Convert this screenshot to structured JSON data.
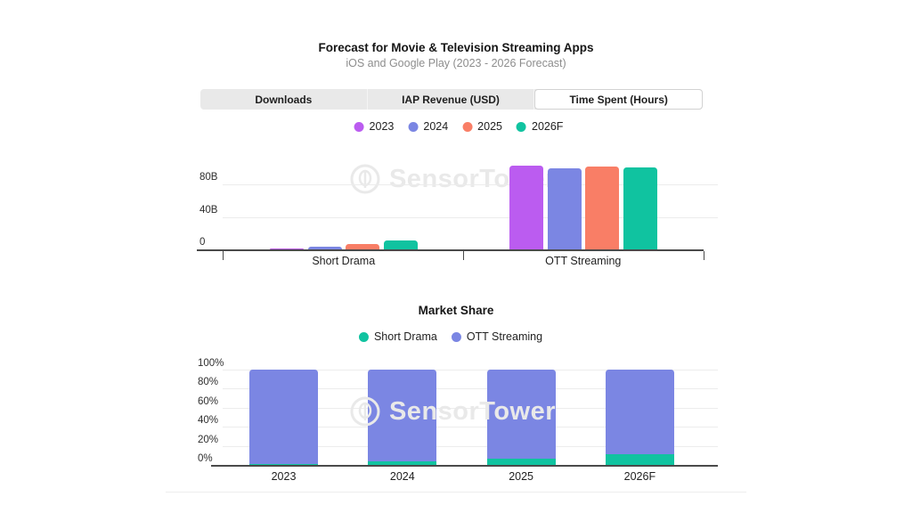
{
  "watermark": {
    "text": "SensorTower"
  },
  "tabs": [
    {
      "label": "Downloads",
      "selected": false
    },
    {
      "label": "IAP Revenue (USD)",
      "selected": false
    },
    {
      "label": "Time Spent (Hours)",
      "selected": true
    }
  ],
  "colors": {
    "year_2023": "#bb5cf0",
    "year_2024": "#7b86e3",
    "year_2025": "#f97e66",
    "year_2026f": "#10c3a0",
    "short_drama": "#10c3a0",
    "ott_streaming": "#7b86e3",
    "axis": "#4a4a4a",
    "grid": "#ececec",
    "tab_background": "#e9e9e9",
    "watermark": "#e9e9e9"
  },
  "chart_data": [
    {
      "type": "bar",
      "title": "Forecast for Movie & Television Streaming Apps",
      "subtitle": "iOS and Google Play (2023 - 2026 Forecast)",
      "metric": "Time Spent (Hours)",
      "categories": [
        "Short Drama",
        "OTT Streaming"
      ],
      "series": [
        {
          "name": "2023",
          "color": "#bb5cf0",
          "values": [
            0.5,
            103
          ]
        },
        {
          "name": "2024",
          "color": "#7b86e3",
          "values": [
            3,
            100
          ]
        },
        {
          "name": "2025",
          "color": "#f97e66",
          "values": [
            7,
            102
          ]
        },
        {
          "name": "2026F",
          "color": "#10c3a0",
          "values": [
            11,
            101
          ]
        }
      ],
      "unit": "billions of hours",
      "yticks": [
        {
          "label": "0",
          "value": 0
        },
        {
          "label": "40B",
          "value": 40
        },
        {
          "label": "80B",
          "value": 80
        }
      ],
      "ylim": [
        0,
        110
      ],
      "grid": true,
      "legend_position": "top"
    },
    {
      "type": "bar",
      "stacked": true,
      "percent": true,
      "title": "Market Share",
      "categories": [
        "2023",
        "2024",
        "2025",
        "2026F"
      ],
      "series": [
        {
          "name": "Short Drama",
          "color": "#10c3a0",
          "values": [
            0.5,
            4,
            7,
            11
          ]
        },
        {
          "name": "OTT Streaming",
          "color": "#7b86e3",
          "values": [
            99.5,
            96,
            93,
            89
          ]
        }
      ],
      "unit": "%",
      "yticks": [
        {
          "label": "0%",
          "value": 0
        },
        {
          "label": "20%",
          "value": 20
        },
        {
          "label": "40%",
          "value": 40
        },
        {
          "label": "60%",
          "value": 60
        },
        {
          "label": "80%",
          "value": 80
        },
        {
          "label": "100%",
          "value": 100
        }
      ],
      "ylim": [
        0,
        100
      ],
      "grid": true,
      "legend_position": "top"
    }
  ]
}
